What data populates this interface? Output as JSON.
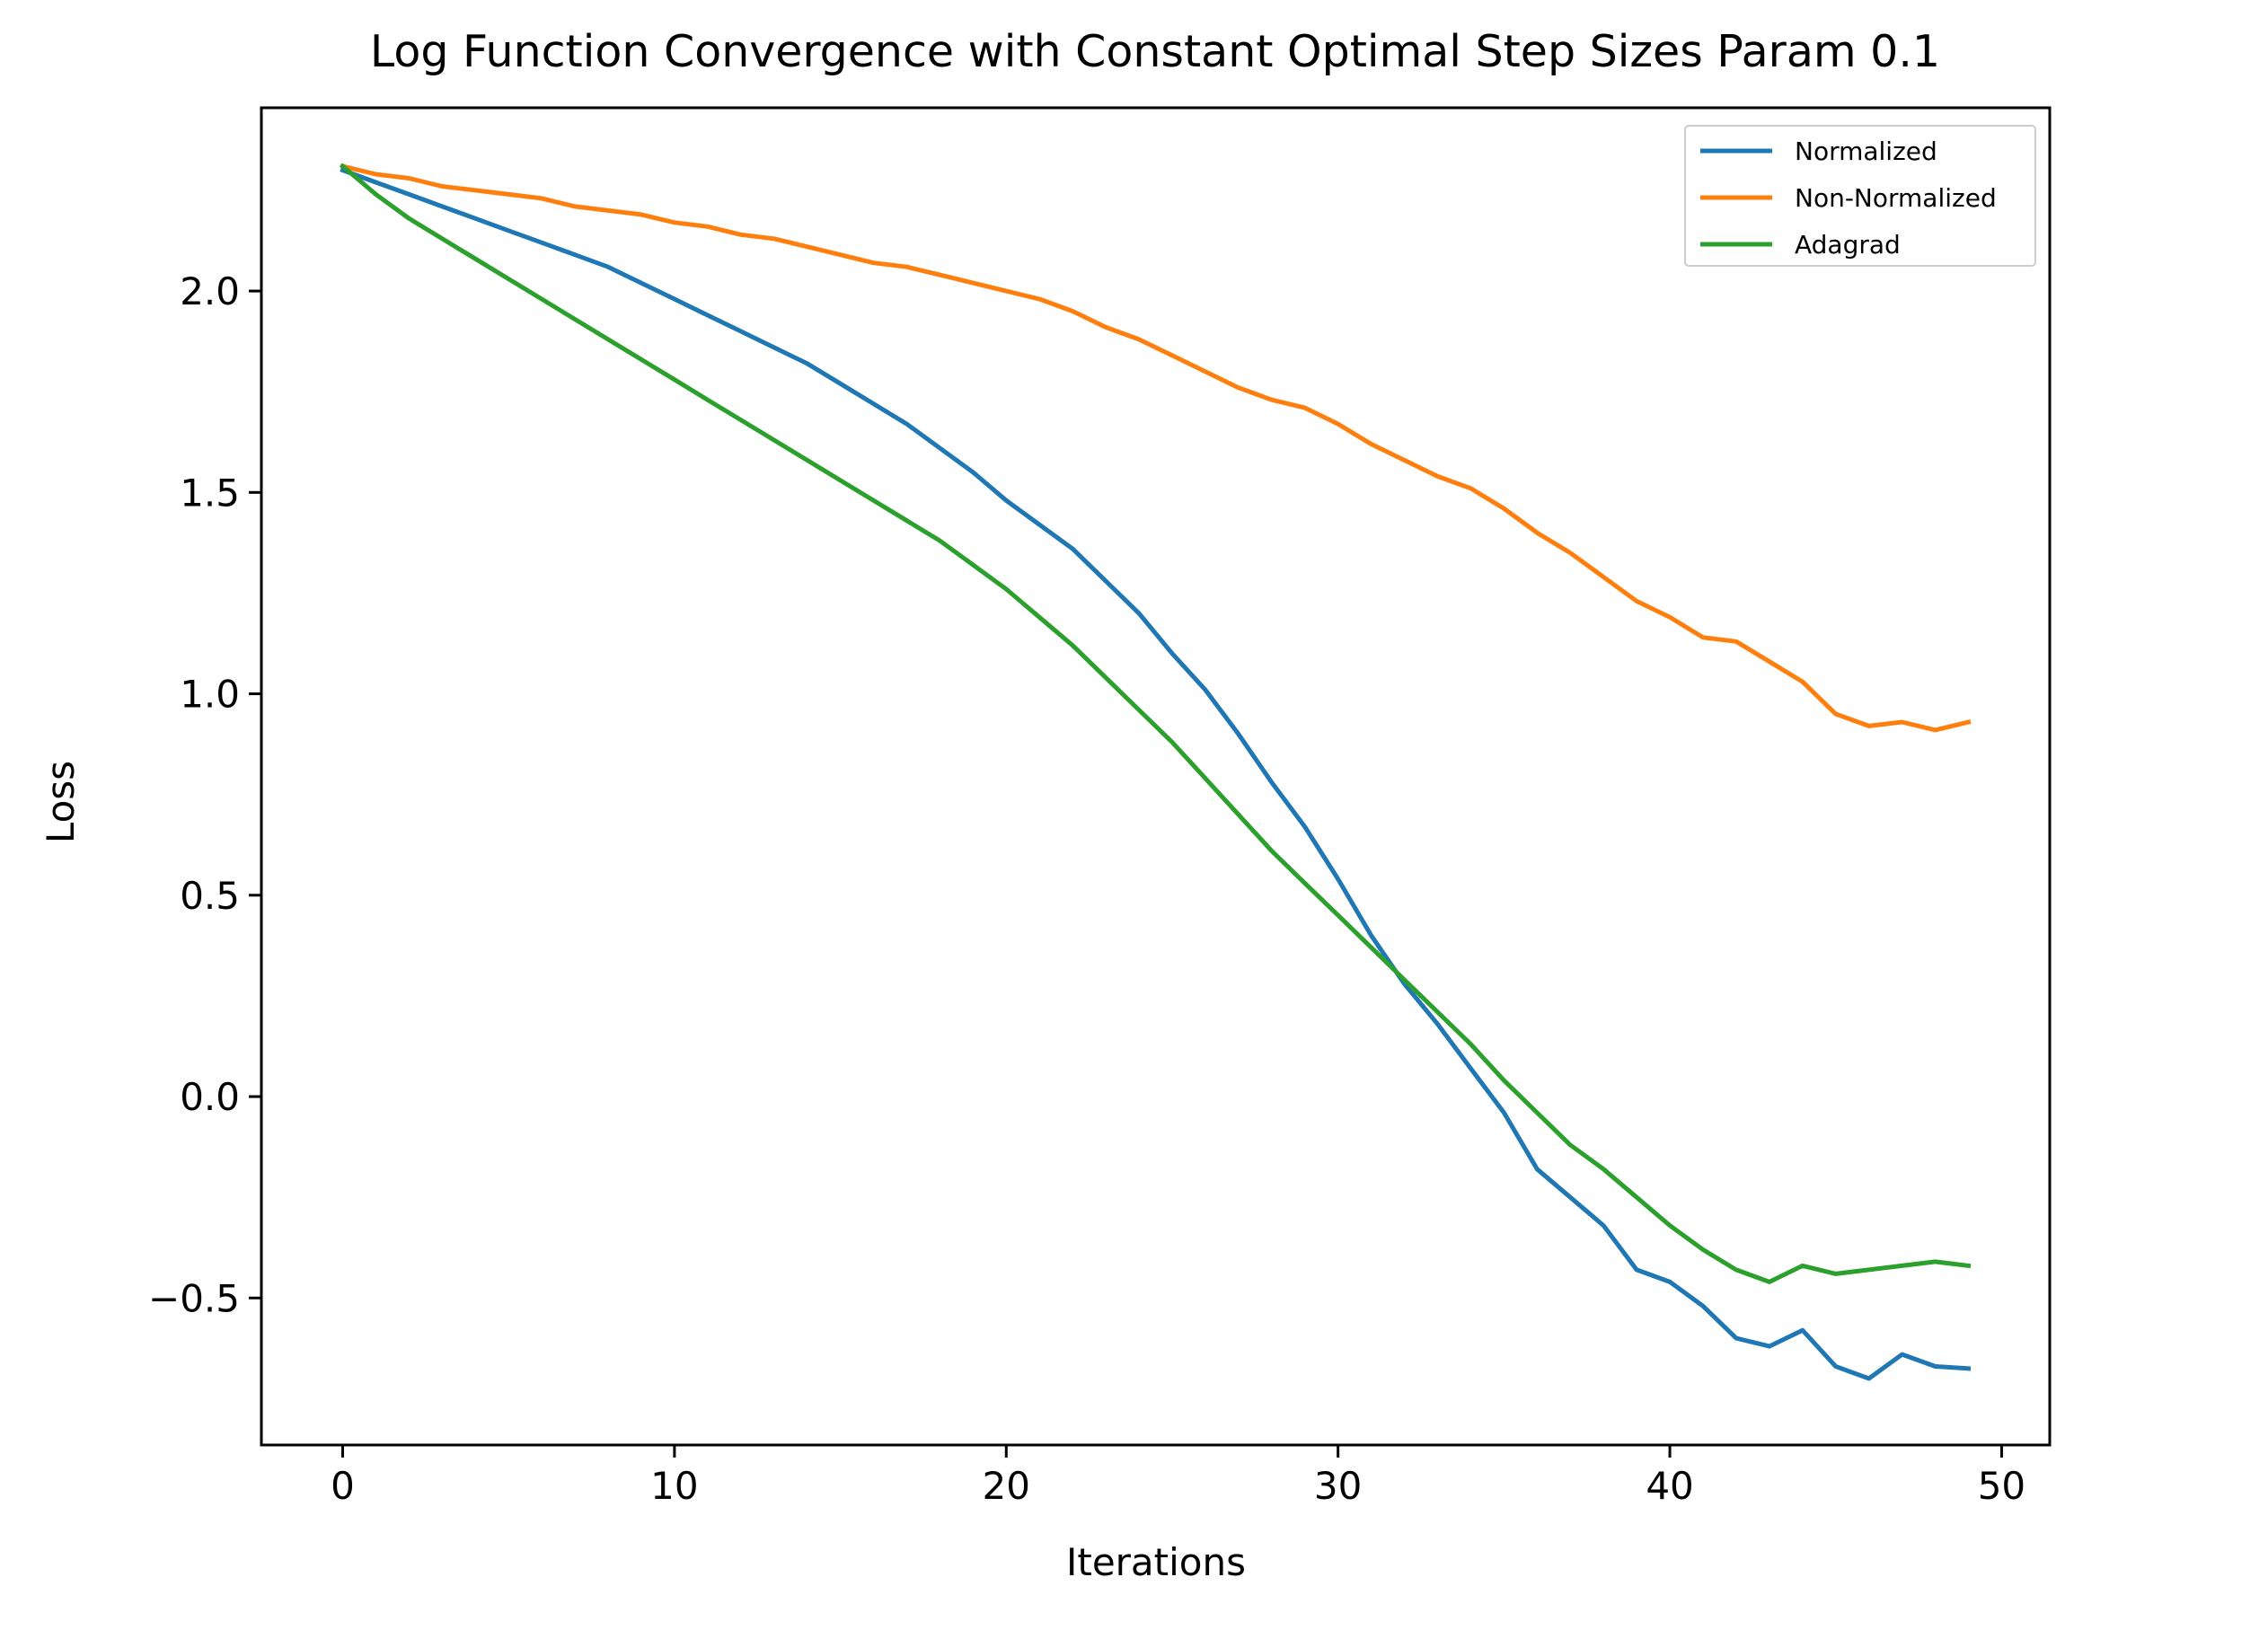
{
  "chart_data": {
    "type": "line",
    "title": "Log Function Convergence with Constant Optimal Step Sizes Param 0.1",
    "xlabel": "Iterations",
    "ylabel": "Loss",
    "xlim": [
      -2.45,
      51.45
    ],
    "ylim": [
      -0.865,
      2.455
    ],
    "xticks": [
      0,
      10,
      20,
      30,
      40,
      50
    ],
    "xtick_labels": [
      "0",
      "10",
      "20",
      "30",
      "40",
      "50"
    ],
    "yticks": [
      -0.5,
      0.0,
      0.5,
      1.0,
      1.5,
      2.0
    ],
    "ytick_labels": [
      "−0.5",
      "0.0",
      "0.5",
      "1.0",
      "1.5",
      "2.0"
    ],
    "grid": false,
    "legend_position": "top-right",
    "x": [
      0,
      1,
      2,
      3,
      4,
      5,
      6,
      7,
      8,
      9,
      10,
      11,
      12,
      13,
      14,
      15,
      16,
      17,
      18,
      19,
      20,
      21,
      22,
      23,
      24,
      25,
      26,
      27,
      28,
      29,
      30,
      31,
      32,
      33,
      34,
      35,
      36,
      37,
      38,
      39,
      40,
      41,
      42,
      43,
      44,
      45,
      46,
      47,
      48,
      49
    ],
    "series": [
      {
        "name": "Normalized",
        "color": "#1f77b4",
        "values": [
          2.3,
          2.27,
          2.24,
          2.21,
          2.18,
          2.15,
          2.12,
          2.09,
          2.06,
          2.02,
          1.98,
          1.94,
          1.9,
          1.86,
          1.82,
          1.77,
          1.72,
          1.67,
          1.61,
          1.55,
          1.48,
          1.42,
          1.36,
          1.28,
          1.2,
          1.1,
          1.01,
          0.9,
          0.78,
          0.67,
          0.54,
          0.4,
          0.28,
          0.18,
          0.07,
          -0.04,
          -0.18,
          -0.25,
          -0.32,
          -0.43,
          -0.46,
          -0.52,
          -0.6,
          -0.62,
          -0.58,
          -0.67,
          -0.7,
          -0.64,
          -0.67,
          -0.675
        ]
      },
      {
        "name": "Non-Normalized",
        "color": "#ff7f0e",
        "values": [
          2.31,
          2.29,
          2.28,
          2.26,
          2.25,
          2.24,
          2.23,
          2.21,
          2.2,
          2.19,
          2.17,
          2.16,
          2.14,
          2.13,
          2.11,
          2.09,
          2.07,
          2.06,
          2.04,
          2.02,
          2.0,
          1.98,
          1.95,
          1.91,
          1.88,
          1.84,
          1.8,
          1.76,
          1.73,
          1.71,
          1.67,
          1.62,
          1.58,
          1.54,
          1.51,
          1.46,
          1.4,
          1.35,
          1.29,
          1.23,
          1.19,
          1.14,
          1.13,
          1.08,
          1.03,
          0.95,
          0.92,
          0.93,
          0.91,
          0.93
        ]
      },
      {
        "name": "Adagrad",
        "color": "#2ca02c",
        "values": [
          2.31,
          2.24,
          2.18,
          2.13,
          2.08,
          2.03,
          1.98,
          1.93,
          1.88,
          1.83,
          1.78,
          1.73,
          1.68,
          1.63,
          1.58,
          1.53,
          1.48,
          1.43,
          1.38,
          1.32,
          1.26,
          1.19,
          1.12,
          1.04,
          0.96,
          0.88,
          0.79,
          0.7,
          0.61,
          0.53,
          0.45,
          0.37,
          0.29,
          0.21,
          0.13,
          0.04,
          -0.04,
          -0.12,
          -0.18,
          -0.25,
          -0.32,
          -0.38,
          -0.43,
          -0.46,
          -0.42,
          -0.44,
          -0.43,
          -0.42,
          -0.41,
          -0.42
        ]
      }
    ]
  }
}
